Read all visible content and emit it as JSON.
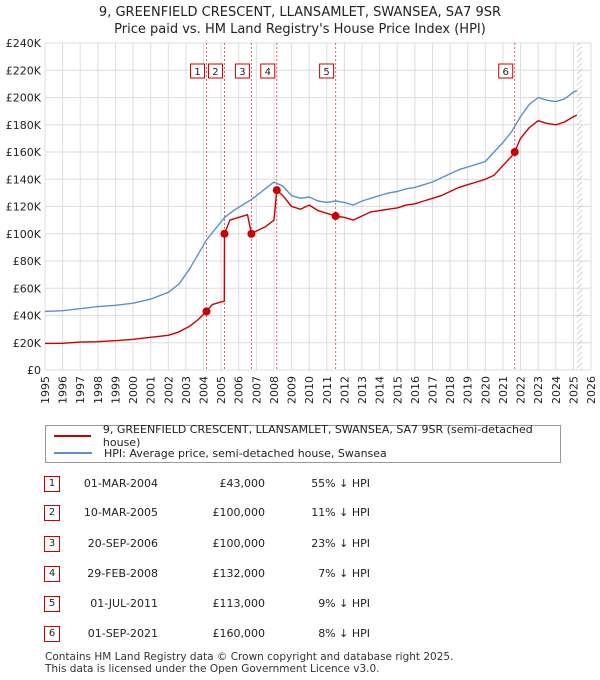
{
  "title": {
    "line1": "9, GREENFIELD CRESCENT, LLANSAMLET, SWANSEA, SA7 9SR",
    "line2": "Price paid vs. HM Land Registry's House Price Index (HPI)"
  },
  "colors": {
    "price_line": "#cc0000",
    "hpi_line": "#5b8fd0",
    "grid": "#dddddd",
    "marker_vline": "#e06060"
  },
  "chart_data": {
    "type": "line",
    "ylim": [
      0,
      240000
    ],
    "xlim": [
      1995,
      2026
    ],
    "y_ticks": [
      {
        "value": 0,
        "label": "£0"
      },
      {
        "value": 20000,
        "label": "£20K"
      },
      {
        "value": 40000,
        "label": "£40K"
      },
      {
        "value": 60000,
        "label": "£60K"
      },
      {
        "value": 80000,
        "label": "£80K"
      },
      {
        "value": 100000,
        "label": "£100K"
      },
      {
        "value": 120000,
        "label": "£120K"
      },
      {
        "value": 140000,
        "label": "£140K"
      },
      {
        "value": 160000,
        "label": "£160K"
      },
      {
        "value": 180000,
        "label": "£180K"
      },
      {
        "value": 200000,
        "label": "£200K"
      },
      {
        "value": 220000,
        "label": "£220K"
      },
      {
        "value": 240000,
        "label": "£240K"
      }
    ],
    "x_ticks": [
      "1995",
      "1996",
      "1997",
      "1998",
      "1999",
      "2000",
      "2001",
      "2002",
      "2003",
      "2004",
      "2005",
      "2006",
      "2007",
      "2008",
      "2009",
      "2010",
      "2011",
      "2012",
      "2013",
      "2014",
      "2015",
      "2016",
      "2017",
      "2018",
      "2019",
      "2020",
      "2021",
      "2022",
      "2023",
      "2024",
      "2025",
      "2026"
    ],
    "grid": true,
    "legend_position": "below",
    "series": [
      {
        "name": "9, GREENFIELD CRESCENT, LLANSAMLET, SWANSEA, SA7 9SR (semi-detached house)",
        "x": [
          1995.0,
          1996.0,
          1997.0,
          1998.0,
          1999.0,
          2000.0,
          2001.0,
          2002.0,
          2002.6,
          2003.2,
          2003.7,
          2004.17,
          2004.5,
          2005.0,
          2005.18,
          2005.19,
          2005.5,
          2006.0,
          2006.5,
          2006.72,
          2007.0,
          2007.5,
          2008.0,
          2008.16,
          2008.5,
          2009.0,
          2009.5,
          2010.0,
          2010.5,
          2011.0,
          2011.5,
          2012.0,
          2012.5,
          2013.0,
          2013.5,
          2014.0,
          2014.5,
          2015.0,
          2015.5,
          2016.0,
          2016.5,
          2017.0,
          2017.5,
          2018.0,
          2018.5,
          2019.0,
          2019.5,
          2020.0,
          2020.5,
          2021.0,
          2021.5,
          2021.67,
          2022.0,
          2022.5,
          2023.0,
          2023.5,
          2024.0,
          2024.5,
          2025.0,
          2025.2
        ],
        "y": [
          19500,
          19600,
          20500,
          20800,
          21500,
          22500,
          24000,
          25500,
          28000,
          32000,
          37000,
          43000,
          48000,
          50000,
          50500,
          100000,
          110000,
          112000,
          114000,
          100000,
          102000,
          105000,
          110000,
          132000,
          128000,
          120000,
          118000,
          121000,
          117000,
          115000,
          113000,
          112000,
          110000,
          113000,
          116000,
          117000,
          118000,
          119000,
          121000,
          122000,
          124000,
          126000,
          128000,
          131000,
          134000,
          136000,
          138000,
          140000,
          143000,
          150000,
          157000,
          160000,
          170000,
          178000,
          183000,
          181000,
          180000,
          182000,
          186000,
          187000
        ]
      },
      {
        "name": "HPI: Average price, semi-detached house, Swansea",
        "x": [
          1995.0,
          1996.0,
          1997.0,
          1998.0,
          1999.0,
          2000.0,
          2001.0,
          2002.0,
          2002.6,
          2003.2,
          2003.7,
          2004.2,
          2004.7,
          2005.2,
          2005.7,
          2006.2,
          2006.7,
          2007.2,
          2007.7,
          2008.0,
          2008.5,
          2009.0,
          2009.5,
          2010.0,
          2010.5,
          2011.0,
          2011.5,
          2012.0,
          2012.5,
          2013.0,
          2013.5,
          2014.0,
          2014.5,
          2015.0,
          2015.5,
          2016.0,
          2016.5,
          2017.0,
          2017.5,
          2018.0,
          2018.5,
          2019.0,
          2019.5,
          2020.0,
          2020.5,
          2021.0,
          2021.5,
          2022.0,
          2022.5,
          2023.0,
          2023.5,
          2024.0,
          2024.5,
          2025.0,
          2025.2
        ],
        "y": [
          43000,
          43500,
          45000,
          46500,
          47500,
          49000,
          52000,
          57000,
          63000,
          74000,
          85000,
          96000,
          104000,
          112000,
          117000,
          121000,
          125000,
          130000,
          135000,
          138000,
          135000,
          128000,
          126000,
          127000,
          124000,
          123000,
          124000,
          123000,
          121000,
          124000,
          126000,
          128000,
          130000,
          131000,
          133000,
          134000,
          136000,
          138000,
          141000,
          144000,
          147000,
          149000,
          151000,
          153000,
          160000,
          167000,
          175000,
          186000,
          195000,
          200000,
          198000,
          197000,
          199000,
          204000,
          205000
        ]
      }
    ],
    "markers": [
      {
        "label": "1",
        "x": 2004.17,
        "y": 43000
      },
      {
        "label": "2",
        "x": 2005.19,
        "y": 100000
      },
      {
        "label": "3",
        "x": 2006.72,
        "y": 100000
      },
      {
        "label": "4",
        "x": 2008.16,
        "y": 132000
      },
      {
        "label": "5",
        "x": 2011.5,
        "y": 113000
      },
      {
        "label": "6",
        "x": 2021.67,
        "y": 160000
      }
    ]
  },
  "legend": {
    "price_label": "9, GREENFIELD CRESCENT, LLANSAMLET, SWANSEA, SA7 9SR (semi-detached house)",
    "hpi_label": "HPI: Average price, semi-detached house, Swansea"
  },
  "sales": [
    {
      "num": "1",
      "date": "01-MAR-2004",
      "price": "£43,000",
      "hpi": "55% ↓ HPI"
    },
    {
      "num": "2",
      "date": "10-MAR-2005",
      "price": "£100,000",
      "hpi": "11% ↓ HPI"
    },
    {
      "num": "3",
      "date": "20-SEP-2006",
      "price": "£100,000",
      "hpi": "23% ↓ HPI"
    },
    {
      "num": "4",
      "date": "29-FEB-2008",
      "price": "£132,000",
      "hpi": "7% ↓ HPI"
    },
    {
      "num": "5",
      "date": "01-JUL-2011",
      "price": "£113,000",
      "hpi": "9% ↓ HPI"
    },
    {
      "num": "6",
      "date": "01-SEP-2021",
      "price": "£160,000",
      "hpi": "8% ↓ HPI"
    }
  ],
  "footer": {
    "line1": "Contains HM Land Registry data © Crown copyright and database right 2025.",
    "line2": "This data is licensed under the Open Government Licence v3.0."
  }
}
